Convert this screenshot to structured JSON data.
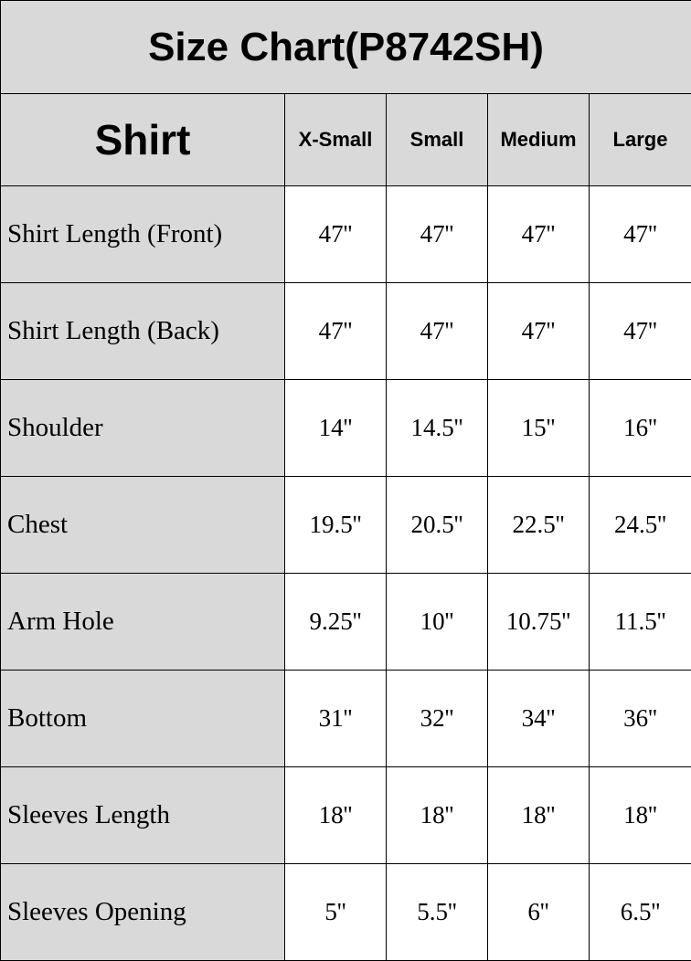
{
  "title": "Size Chart(P8742SH)",
  "header": {
    "category": "Shirt",
    "sizes": [
      "X-Small",
      "Small",
      "Medium",
      "Large"
    ]
  },
  "colors": {
    "header_bg": "#d9d9d9",
    "cell_bg": "#ffffff",
    "border": "#000000"
  },
  "rows": [
    {
      "label": "Shirt Length (Front)",
      "values": [
        "47''",
        "47''",
        "47''",
        "47''"
      ]
    },
    {
      "label": "Shirt Length (Back)",
      "values": [
        "47''",
        "47''",
        "47''",
        "47''"
      ]
    },
    {
      "label": "Shoulder",
      "values": [
        "14''",
        "14.5''",
        "15''",
        "16''"
      ]
    },
    {
      "label": "Chest",
      "values": [
        "19.5''",
        "20.5''",
        "22.5''",
        "24.5''"
      ]
    },
    {
      "label": "Arm Hole",
      "values": [
        "9.25''",
        "10''",
        "10.75''",
        "11.5''"
      ]
    },
    {
      "label": "Bottom",
      "values": [
        "31''",
        "32''",
        "34''",
        "36''"
      ]
    },
    {
      "label": "Sleeves Length",
      "values": [
        "18''",
        "18''",
        "18''",
        "18''"
      ]
    },
    {
      "label": "Sleeves Opening",
      "values": [
        "5''",
        "5.5''",
        "6''",
        "6.5''"
      ]
    }
  ]
}
